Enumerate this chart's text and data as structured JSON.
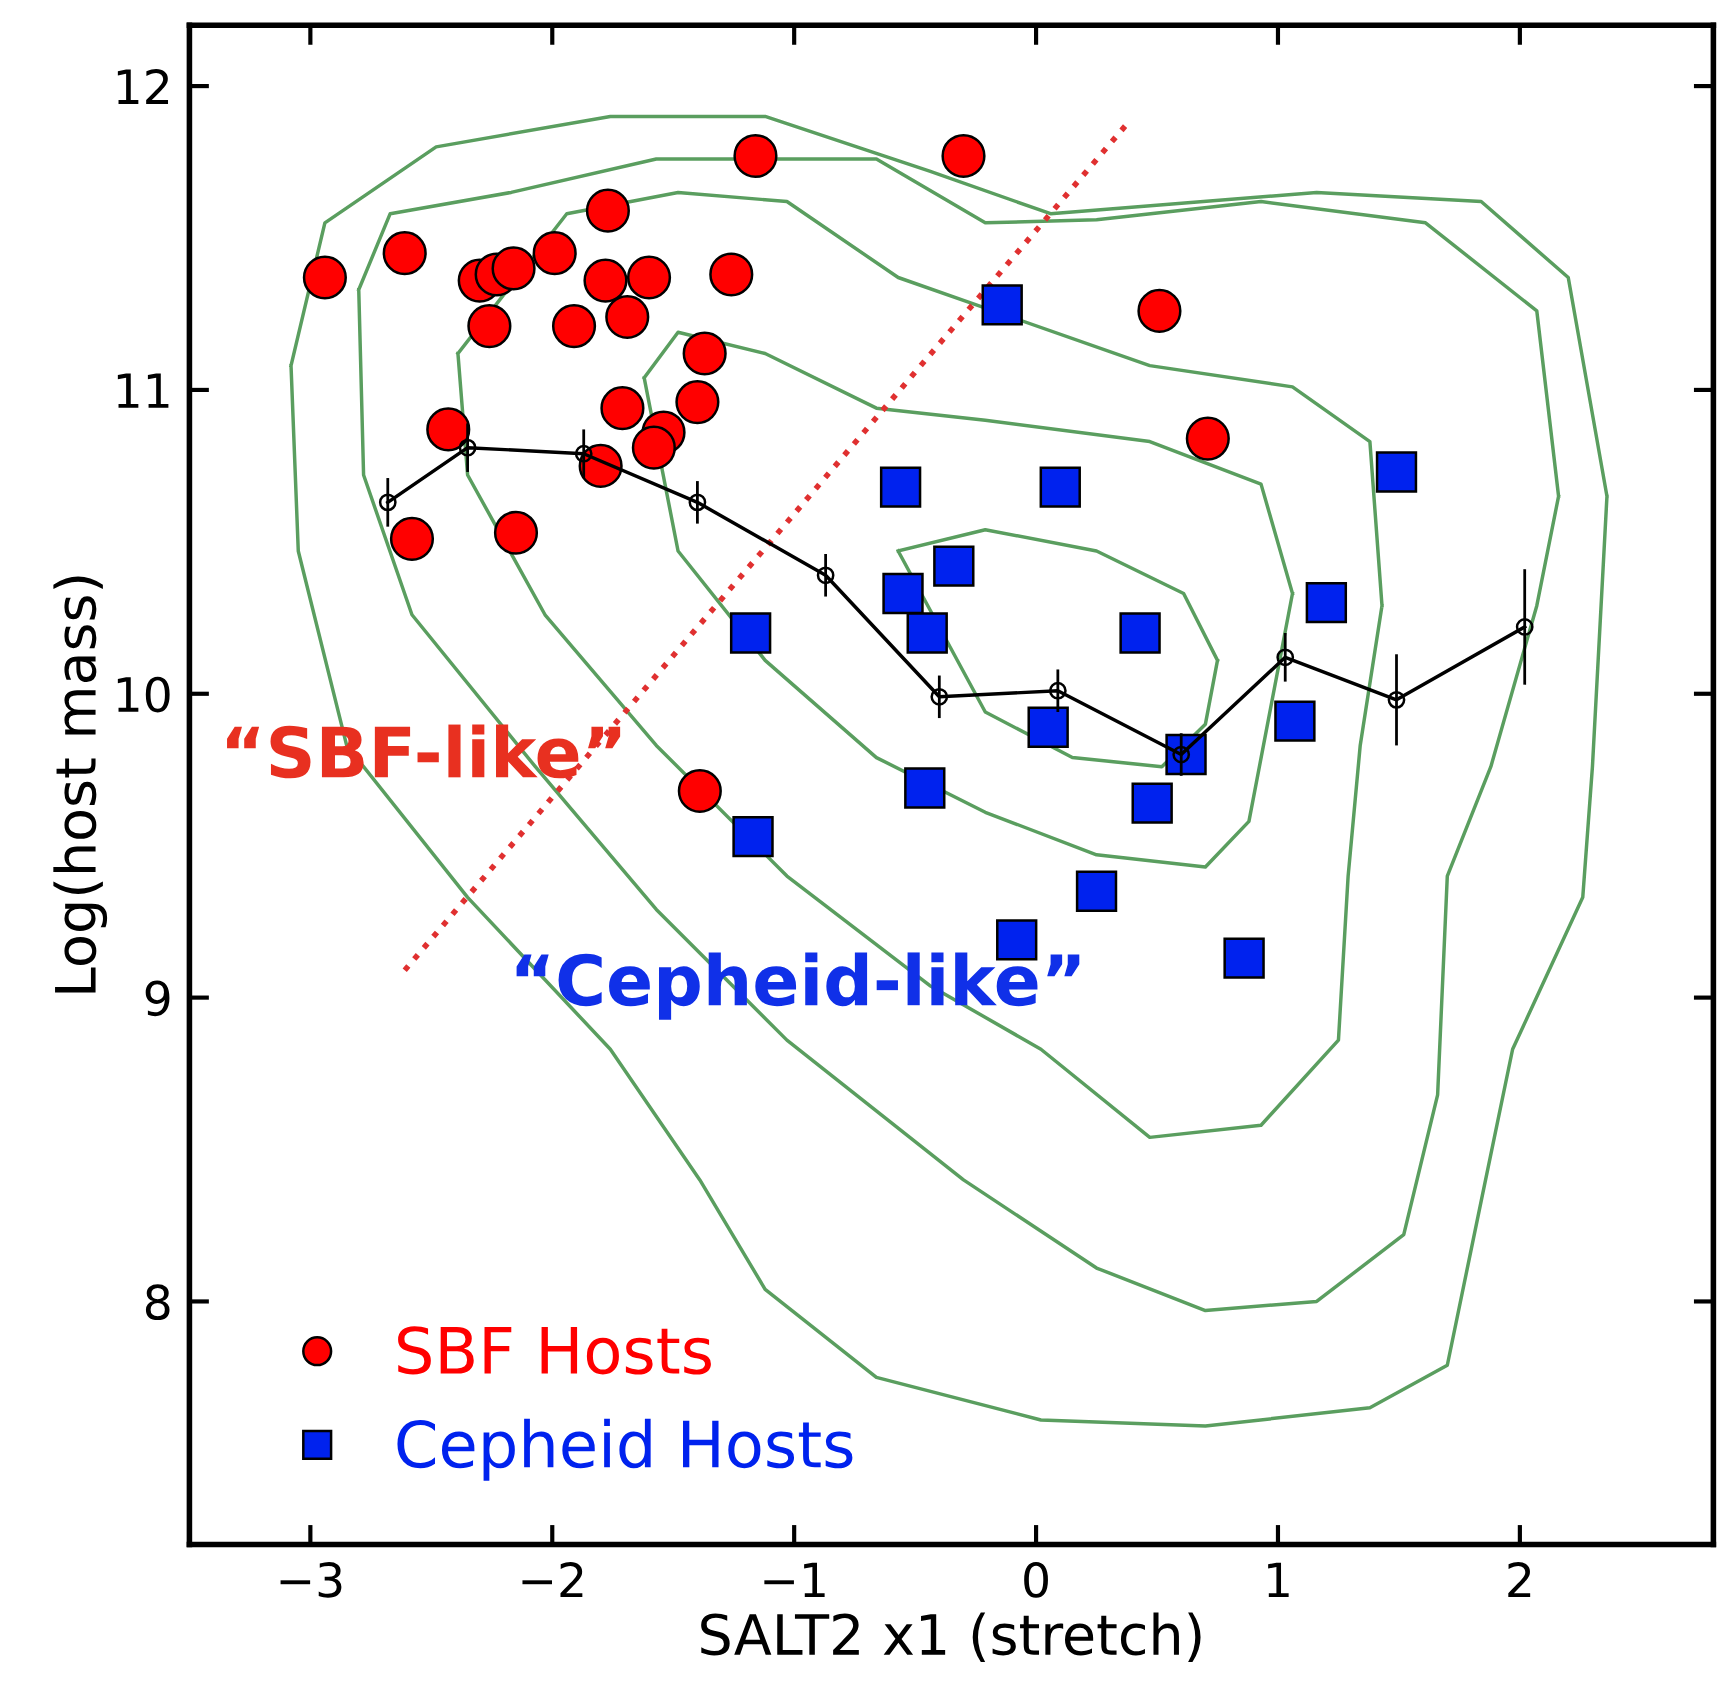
{
  "chart_data": {
    "type": "scatter",
    "xlabel": "SALT2 x1 (stretch)",
    "ylabel": "Log(host mass)",
    "xlim": [
      -3.5,
      2.8
    ],
    "ylim": [
      7.2,
      12.2
    ],
    "xticks": [
      -3,
      -2,
      -1,
      0,
      1,
      2
    ],
    "yticks": [
      8,
      9,
      10,
      11,
      12
    ],
    "grid": false,
    "legend": "bottom left",
    "annotations": [
      "“SBF-like”",
      "“Cepheid-like”"
    ],
    "series": [
      {
        "type": "line",
        "color": "#5a9e5f",
        "line_style": "solid",
        "marker": "none",
        "x": [
          -3.08,
          -2.94,
          -2.48,
          -1.76,
          -1.12,
          -0.44,
          0.06,
          1.16,
          1.84,
          2.2,
          2.36,
          null,
          -3.08,
          -3.05,
          -2.85,
          -2.35,
          -1.76,
          -1.39,
          -1.12,
          -0.66,
          0.02,
          0.7,
          1.38,
          1.7,
          1.84,
          1.97,
          2.26,
          2.3,
          2.36
        ],
        "values": [
          11.08,
          11.55,
          11.8,
          11.9,
          11.9,
          11.72,
          11.58,
          11.65,
          11.62,
          11.37,
          10.65,
          null,
          11.08,
          10.47,
          9.83,
          9.33,
          8.83,
          8.4,
          8.04,
          7.75,
          7.61,
          7.59,
          7.65,
          7.79,
          8.33,
          8.83,
          9.33,
          9.76,
          10.65
        ]
      },
      {
        "type": "line",
        "color": "#5a9e5f",
        "line_style": "solid",
        "marker": "none",
        "x": [
          -2.8,
          -2.67,
          -2.17,
          -1.57,
          -0.66,
          -0.21,
          0.25,
          0.93,
          1.61,
          2.07,
          2.16,
          null,
          -2.8,
          -2.78,
          -2.58,
          -2.07,
          -1.57,
          -1.03,
          -0.3,
          0.25,
          0.7,
          1.16,
          1.52,
          1.66,
          1.7,
          1.88,
          2.07,
          2.16
        ],
        "values": [
          11.33,
          11.58,
          11.65,
          11.76,
          11.76,
          11.55,
          11.56,
          11.62,
          11.55,
          11.26,
          10.65,
          null,
          11.33,
          10.72,
          10.26,
          9.76,
          9.29,
          8.86,
          8.4,
          8.11,
          7.97,
          8.0,
          8.22,
          8.68,
          9.4,
          9.76,
          10.29,
          10.65
        ]
      },
      {
        "type": "line",
        "color": "#5a9e5f",
        "line_style": "solid",
        "marker": "none",
        "x": [
          -2.39,
          -1.94,
          -1.48,
          -1.03,
          -0.57,
          0.47,
          1.06,
          1.38,
          1.43,
          null,
          -2.39,
          -2.35,
          -2.03,
          -1.57,
          -1.03,
          -0.44,
          0.02,
          0.47,
          0.93,
          1.25,
          1.29,
          1.34,
          1.43
        ],
        "values": [
          11.12,
          11.58,
          11.65,
          11.62,
          11.37,
          11.08,
          11.01,
          10.83,
          10.29,
          null,
          11.12,
          10.72,
          10.26,
          9.83,
          9.4,
          9.04,
          8.83,
          8.54,
          8.58,
          8.86,
          9.4,
          9.83,
          10.29
        ]
      },
      {
        "type": "line",
        "color": "#5a9e5f",
        "line_style": "solid",
        "marker": "none",
        "x": [
          -1.62,
          -1.48,
          -1.12,
          -0.66,
          -0.21,
          0.47,
          0.93,
          1.06,
          null,
          -1.62,
          -1.48,
          -1.12,
          -0.66,
          -0.21,
          0.25,
          0.7,
          0.88,
          1.06
        ],
        "values": [
          11.04,
          11.19,
          11.12,
          10.94,
          10.9,
          10.83,
          10.69,
          10.33,
          null,
          11.04,
          10.47,
          10.11,
          9.79,
          9.61,
          9.47,
          9.43,
          9.58,
          10.33
        ]
      },
      {
        "type": "line",
        "color": "#5a9e5f",
        "line_style": "solid",
        "marker": "none",
        "x": [
          -0.57,
          -0.21,
          0.25,
          0.61,
          0.75,
          null,
          -0.57,
          -0.21,
          0.15,
          0.52,
          0.7,
          0.75
        ],
        "values": [
          10.47,
          10.54,
          10.47,
          10.33,
          10.11,
          null,
          10.47,
          9.94,
          9.79,
          9.76,
          9.9,
          10.11
        ]
      },
      {
        "type": "line",
        "color": "#e03030",
        "line_style": "dotted",
        "marker": "none",
        "x": [
          -2.61,
          0.37
        ],
        "values": [
          9.09,
          11.87
        ]
      },
      {
        "type": "line",
        "color": "#000000",
        "line_style": "solid",
        "marker": "circle",
        "x": [
          -2.68,
          -2.35,
          -1.87,
          -1.4,
          -0.87,
          -0.4,
          0.09,
          0.6,
          1.03,
          1.49,
          2.02
        ],
        "values": [
          10.63,
          10.81,
          10.79,
          10.63,
          10.39,
          9.99,
          10.01,
          9.8,
          10.12,
          9.98,
          10.22
        ],
        "errors": [
          0.08,
          0.08,
          0.08,
          0.07,
          0.07,
          0.07,
          0.07,
          0.07,
          0.08,
          0.15,
          0.19
        ]
      },
      {
        "name": "SBF Hosts",
        "color": "#ff0000",
        "marker": "circle",
        "x": [
          -2.94,
          -2.61,
          -2.3,
          -2.23,
          -2.16,
          -1.99,
          -1.77,
          -1.78,
          -1.6,
          -1.26,
          -1.16,
          -0.3,
          -2.26,
          -1.91,
          -1.69,
          -1.37,
          -1.71,
          -1.4,
          -1.54,
          -1.58,
          -2.43,
          -1.8,
          -2.58,
          -2.15,
          -1.39,
          0.51,
          0.71
        ],
        "values": [
          11.37,
          11.45,
          11.36,
          11.38,
          11.4,
          11.45,
          11.59,
          11.36,
          11.37,
          11.38,
          11.77,
          11.77,
          11.21,
          11.21,
          11.24,
          11.12,
          10.94,
          10.96,
          10.86,
          10.81,
          10.87,
          10.75,
          10.51,
          10.53,
          9.68,
          11.26,
          10.84
        ]
      },
      {
        "name": "Cepheid Hosts",
        "color": "#0022ee",
        "marker": "square",
        "x": [
          -0.14,
          -0.56,
          0.1,
          1.49,
          -0.34,
          -0.55,
          -0.45,
          -1.18,
          0.43,
          1.2,
          0.05,
          1.07,
          0.62,
          -0.46,
          0.48,
          -1.17,
          0.25,
          -0.08,
          0.86
        ],
        "values": [
          11.28,
          10.68,
          10.68,
          10.73,
          10.42,
          10.33,
          10.2,
          10.2,
          10.2,
          10.3,
          9.89,
          9.91,
          9.8,
          9.69,
          9.64,
          9.53,
          9.35,
          9.19,
          9.13
        ]
      }
    ]
  }
}
